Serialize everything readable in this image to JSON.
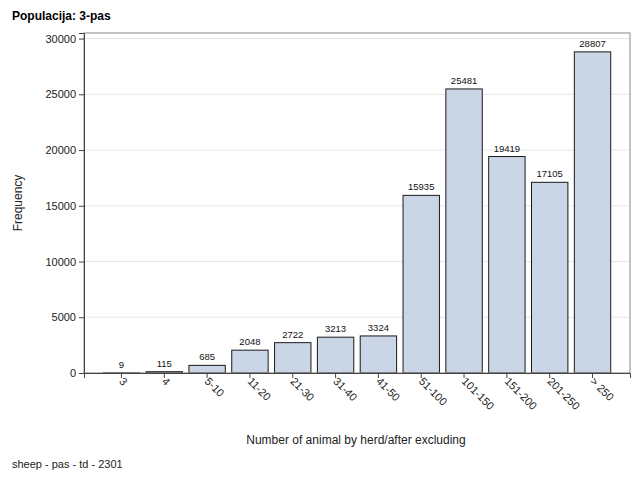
{
  "chart_data": {
    "type": "bar",
    "title": "Populacija: 3-pas",
    "x_label": "Number of animal by herd/after excluding",
    "y_label": "Frequency",
    "annotations": [
      "sheep - pas - td - 2301"
    ],
    "categories": [
      "3",
      "4",
      "5-10",
      "11-20",
      "21-30",
      "31-40",
      "41-50",
      "51-100",
      "101-150",
      "151-200",
      "201-250",
      "> 250"
    ],
    "values": [
      9,
      115,
      685,
      2048,
      2722,
      3213,
      3324,
      15935,
      25481,
      19419,
      17105,
      28807
    ],
    "color": "#cad5e5",
    "ylim": [
      0,
      30500
    ],
    "yticks": [
      0,
      5000,
      10000,
      15000,
      20000,
      25000,
      30000
    ],
    "grid": true,
    "data_labels": true
  }
}
